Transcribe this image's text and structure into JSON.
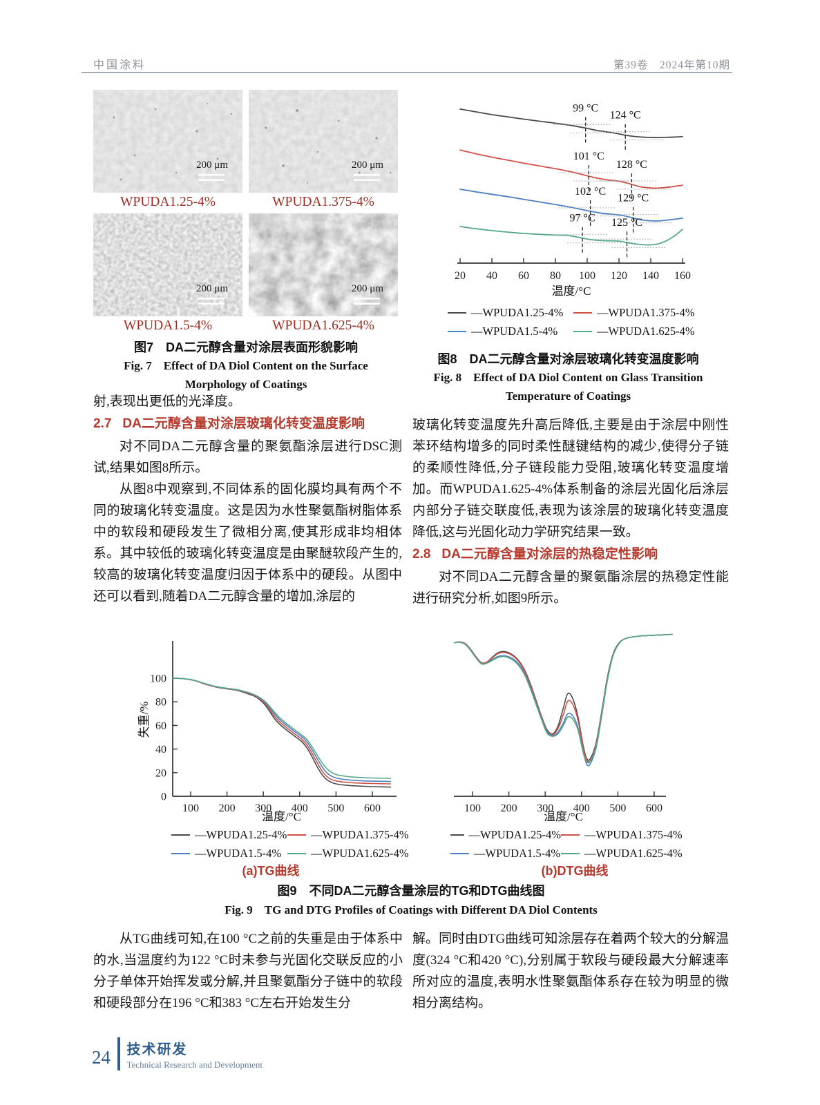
{
  "page": {
    "header": {
      "journal": "中国涂料",
      "issue": "第39卷　2024年第10期"
    },
    "footer": {
      "page_number": "24",
      "section_cn": "技术研发",
      "section_en": "Technical Research and Development"
    }
  },
  "colors": {
    "heading_red": "#b5392c",
    "micro_label_red": "#9e2c20",
    "footer_blue": "#2f5d8c",
    "header_gray": "#8a9198"
  },
  "figure7": {
    "micrographs": [
      {
        "label": "WPUDA1.25-4%",
        "scale": "200 μm"
      },
      {
        "label": "WPUDA1.375-4%",
        "scale": "200 μm"
      },
      {
        "label": "WPUDA1.5-4%",
        "scale": "200 μm"
      },
      {
        "label": "WPUDA1.625-4%",
        "scale": "200 μm"
      }
    ],
    "caption_cn": "图7　DA二元醇含量对涂层表面形貌影响",
    "caption_en1": "Fig. 7　Effect of DA Diol Content on the Surface",
    "caption_en2": "Morphology of Coatings"
  },
  "figure8": {
    "caption_cn": "图8　DA二元醇含量对涂层玻璃化转变温度影响",
    "caption_en1": "Fig. 8　Effect of DA Diol Content on Glass Transition",
    "caption_en2": "Temperature of Coatings"
  },
  "figure9": {
    "caption_a": "(a)TG曲线",
    "caption_b": "(b)DTG曲线",
    "caption_cn": "图9　不同DA二元醇含量涂层的TG和DTG曲线图",
    "caption_en": "Fig. 9　TG and DTG Profiles of Coatings with Different DA Diol Contents"
  },
  "legend": {
    "items": [
      {
        "label": "—WPUDA1.25-4%",
        "color": "#4a4a4a"
      },
      {
        "label": "—WPUDA1.375-4%",
        "color": "#cf5148"
      },
      {
        "label": "—WPUDA1.5-4%",
        "color": "#4b7fc0"
      },
      {
        "label": "—WPUDA1.625-4%",
        "color": "#57a888"
      }
    ]
  },
  "text": {
    "left": {
      "p1": "射,表现出更低的光泽度。",
      "h_num": "2.7",
      "h_title": "DA二元醇含量对涂层玻璃化转变温度影响",
      "p2": "对不同DA二元醇含量的聚氨酯涂层进行DSC测试,结果如图8所示。",
      "p3": "从图8中观察到,不同体系的固化膜均具有两个不同的玻璃化转变温度。这是因为水性聚氨酯树脂体系中的软段和硬段发生了微相分离,使其形成非均相体系。其中较低的玻璃化转变温度是由聚醚软段产生的,较高的玻璃化转变温度归因于体系中的硬段。从图中还可以看到,随着DA二元醇含量的增加,涂层的"
    },
    "right": {
      "p1": "玻璃化转变温度先升高后降低,主要是由于涂层中刚性苯环结构增多的同时柔性醚键结构的减少,使得分子链的柔顺性降低,分子链段能力受阻,玻璃化转变温度增加。而WPUDA1.625-4%体系制备的涂层光固化后涂层内部分子链交联度低,表现为该涂层的玻璃化转变温度降低,这与光固化动力学研究结果一致。",
      "h_num": "2.8",
      "h_title": "DA二元醇含量对涂层的热稳定性影响",
      "p2": "对不同DA二元醇含量的聚氨酯涂层的热稳定性能进行研究分析,如图9所示。"
    },
    "bottom_left": "从TG曲线可知,在100 °C之前的失重是由于体系中的水,当温度约为122 °C时未参与光固化交联反应的小分子单体开始挥发或分解,并且聚氨酯分子链中的软段和硬段部分在196 °C和383 °C左右开始发生分",
    "bottom_right": "解。同时由DTG曲线可知涂层存在着两个较大的分解温度(324 °C和420 °C),分别属于软段与硬段最大分解速率所对应的温度,表明水性聚氨酯体系存在较为明显的微相分离结构。"
  },
  "chart_data": [
    {
      "id": "dsc",
      "type": "line",
      "title": "DSC curves of coatings with different DA diol contents",
      "xlabel": "温度/°C",
      "xlim": [
        20,
        160
      ],
      "xticks": [
        20,
        40,
        60,
        80,
        100,
        120,
        140,
        160
      ],
      "grid": false,
      "legend_position": "below",
      "series": [
        {
          "name": "WPUDA1.25-4%",
          "color": "#4a4a4a",
          "points": [
            [
              20,
              93
            ],
            [
              30,
              91.5
            ],
            [
              40,
              90
            ],
            [
              50,
              88.8
            ],
            [
              60,
              87.6
            ],
            [
              70,
              86.5
            ],
            [
              80,
              85.4
            ],
            [
              90,
              84.2
            ],
            [
              99,
              82.8
            ],
            [
              106,
              81.6
            ],
            [
              112,
              80.8
            ],
            [
              118,
              80
            ],
            [
              124,
              79
            ],
            [
              130,
              78.3
            ],
            [
              136,
              77.9
            ],
            [
              142,
              77.7
            ],
            [
              150,
              77.8
            ],
            [
              160,
              78.2
            ]
          ],
          "annotations": [
            {
              "x": 99,
              "label": "99 °C"
            },
            {
              "x": 124,
              "label": "124 °C"
            }
          ]
        },
        {
          "name": "WPUDA1.375-4%",
          "color": "#cf5148",
          "points": [
            [
              20,
              71
            ],
            [
              30,
              69
            ],
            [
              40,
              67.2
            ],
            [
              50,
              65.6
            ],
            [
              60,
              64
            ],
            [
              70,
              62.5
            ],
            [
              80,
              61
            ],
            [
              90,
              59.3
            ],
            [
              101,
              57
            ],
            [
              107,
              55.8
            ],
            [
              113,
              55
            ],
            [
              120,
              54.3
            ],
            [
              128,
              52.6
            ],
            [
              133,
              51.4
            ],
            [
              138,
              50.8
            ],
            [
              144,
              50.6
            ],
            [
              152,
              51.2
            ],
            [
              160,
              52.2
            ]
          ],
          "annotations": [
            {
              "x": 101,
              "label": "101 °C"
            },
            {
              "x": 128,
              "label": "128 °C"
            }
          ]
        },
        {
          "name": "WPUDA1.5-4%",
          "color": "#4b7fc0",
          "points": [
            [
              20,
              50
            ],
            [
              30,
              48.6
            ],
            [
              40,
              47.3
            ],
            [
              50,
              46
            ],
            [
              60,
              44.6
            ],
            [
              70,
              43.2
            ],
            [
              80,
              41.8
            ],
            [
              90,
              40.3
            ],
            [
              102,
              38.2
            ],
            [
              108,
              37.3
            ],
            [
              114,
              36.7
            ],
            [
              121,
              36.1
            ],
            [
              129,
              34.6
            ],
            [
              134,
              33.6
            ],
            [
              139,
              33.1
            ],
            [
              145,
              33
            ],
            [
              152,
              33.6
            ],
            [
              160,
              34.5
            ]
          ],
          "annotations": [
            {
              "x": 102,
              "label": "102 °C"
            },
            {
              "x": 129,
              "label": "129 °C"
            }
          ]
        },
        {
          "name": "WPUDA1.625-4%",
          "color": "#57a888",
          "points": [
            [
              20,
              30
            ],
            [
              30,
              28.8
            ],
            [
              40,
              27.8
            ],
            [
              50,
              27
            ],
            [
              60,
              26.3
            ],
            [
              70,
              25.8
            ],
            [
              80,
              25.4
            ],
            [
              88,
              25.2
            ],
            [
              97,
              23.8
            ],
            [
              103,
              22.9
            ],
            [
              109,
              22.5
            ],
            [
              116,
              22.3
            ],
            [
              120,
              22.2
            ],
            [
              125,
              21.4
            ],
            [
              131,
              20.6
            ],
            [
              137,
              20.2
            ],
            [
              143,
              20.4
            ],
            [
              149,
              22
            ],
            [
              155,
              25
            ],
            [
              160,
              28.5
            ]
          ],
          "annotations": [
            {
              "x": 97,
              "label": "97 °C"
            },
            {
              "x": 125,
              "label": "125 °C"
            }
          ]
        }
      ]
    },
    {
      "id": "tg",
      "type": "line",
      "title": "TG curves",
      "xlabel": "温度/°C",
      "ylabel": "失重/%",
      "xlim": [
        50,
        650
      ],
      "ylim": [
        0,
        108
      ],
      "xticks": [
        100,
        200,
        300,
        400,
        500,
        600
      ],
      "yticks": [
        0,
        20,
        40,
        60,
        80,
        100
      ],
      "grid": false,
      "x": [
        50,
        80,
        110,
        140,
        170,
        200,
        230,
        260,
        280,
        300,
        315,
        330,
        345,
        360,
        375,
        390,
        405,
        420,
        435,
        450,
        465,
        480,
        500,
        530,
        560,
        600,
        650
      ],
      "series": [
        {
          "name": "WPUDA1.25-4%",
          "color": "#4a4a4a",
          "values": [
            100,
            99.6,
            98,
            95,
            92.5,
            91,
            89.5,
            86.5,
            84,
            79,
            73,
            66,
            61,
            57,
            53.5,
            50,
            46.5,
            41,
            33,
            24,
            17,
            13,
            10.5,
            9.3,
            8.7,
            8.2,
            7.8
          ]
        },
        {
          "name": "WPUDA1.375-4%",
          "color": "#cf5148",
          "values": [
            100,
            99.6,
            98,
            95,
            92.5,
            91,
            89.7,
            87,
            84.5,
            80,
            74.5,
            68,
            63,
            59,
            55.5,
            52,
            48.5,
            43.5,
            36,
            27.5,
            20,
            15.5,
            13,
            11.8,
            11.2,
            10.8,
            10.5
          ]
        },
        {
          "name": "WPUDA1.5-4%",
          "color": "#4b7fc0",
          "values": [
            100,
            99.6,
            98.2,
            95.3,
            92.8,
            91.3,
            90,
            87.5,
            85,
            81,
            76,
            70,
            65,
            61,
            57.5,
            54,
            50.5,
            46,
            39,
            31,
            23.5,
            18.5,
            15.5,
            14,
            13.3,
            12.8,
            12.5
          ]
        },
        {
          "name": "WPUDA1.625-4%",
          "color": "#57a888",
          "values": [
            100,
            99.6,
            98.2,
            95.4,
            93,
            91.5,
            90.2,
            87.8,
            85.3,
            81.5,
            77,
            71.5,
            66.5,
            62.5,
            59,
            55.5,
            52,
            48,
            41.5,
            34,
            27,
            22,
            18.5,
            16.8,
            16,
            15.5,
            15.2
          ]
        }
      ]
    },
    {
      "id": "dtg",
      "type": "line",
      "title": "DTG curves (derivative weight loss, arbitrary units, peaks at 324 °C and 420 °C)",
      "xlabel": "温度/°C",
      "xlim": [
        50,
        650
      ],
      "xticks": [
        100,
        200,
        300,
        400,
        500,
        600
      ],
      "grid": false,
      "x": [
        50,
        65,
        80,
        95,
        110,
        125,
        140,
        155,
        170,
        185,
        200,
        215,
        230,
        245,
        260,
        275,
        290,
        305,
        320,
        335,
        350,
        362,
        375,
        390,
        405,
        415,
        425,
        440,
        455,
        470,
        485,
        500,
        520,
        560,
        600,
        650
      ],
      "series": [
        {
          "name": "WPUDA1.25-4%",
          "color": "#4a4a4a",
          "values": [
            84,
            84.5,
            83.5,
            80,
            75.5,
            72,
            72.5,
            75.5,
            78,
            78.8,
            78,
            76,
            72.5,
            67,
            59,
            49.5,
            40,
            32,
            29.5,
            34,
            45,
            53.5,
            51,
            40,
            22,
            14.5,
            15,
            24,
            42,
            62,
            76,
            83,
            86.5,
            88,
            88.5,
            89
          ]
        },
        {
          "name": "WPUDA1.375-4%",
          "color": "#cf5148",
          "values": [
            84,
            84.5,
            83.5,
            80,
            75.5,
            72,
            72.5,
            75,
            77.5,
            78.2,
            77.5,
            75.5,
            72,
            66.5,
            58.5,
            49,
            40,
            31.5,
            29,
            32.5,
            41,
            49,
            47.5,
            38,
            21,
            13.5,
            14,
            23,
            41,
            61,
            75.5,
            82.5,
            86.5,
            88,
            88.5,
            89
          ]
        },
        {
          "name": "WPUDA1.5-4%",
          "color": "#4b7fc0",
          "values": [
            84,
            84.3,
            83,
            79.5,
            75,
            71.5,
            72,
            74,
            75.8,
            76.3,
            75.6,
            73.8,
            70.5,
            65,
            57,
            48,
            39,
            31,
            28.5,
            30.5,
            36,
            41.5,
            40.5,
            33.5,
            18.5,
            11,
            12,
            21,
            39.5,
            60,
            75,
            82.5,
            86.5,
            88,
            88.5,
            89
          ]
        },
        {
          "name": "WPUDA1.625-4%",
          "color": "#57a888",
          "values": [
            84,
            84.3,
            83,
            79.3,
            74.8,
            71.3,
            71.8,
            73.5,
            75.2,
            75.8,
            75,
            73,
            69.5,
            64,
            56,
            47,
            38,
            30,
            28,
            29.5,
            34.5,
            39.5,
            38.5,
            32,
            18,
            12.5,
            13.5,
            22,
            40,
            60.5,
            75,
            82.5,
            86.5,
            88,
            88.5,
            89
          ]
        }
      ]
    }
  ]
}
